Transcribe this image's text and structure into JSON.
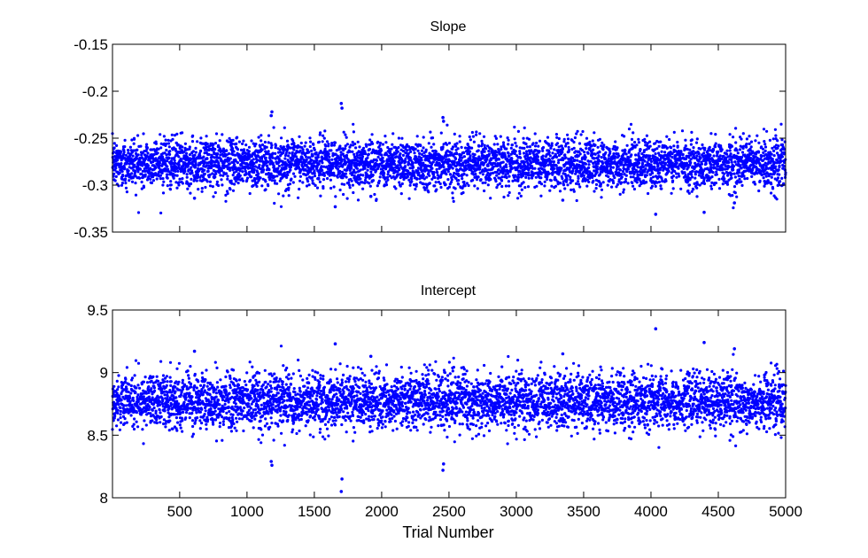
{
  "chart_data": [
    {
      "type": "scatter",
      "title": "Slope",
      "xlabel": "",
      "ylabel": "",
      "xlim": [
        1,
        5000
      ],
      "ylim": [
        -0.35,
        -0.15
      ],
      "xticks": [
        500,
        1000,
        1500,
        2000,
        2500,
        3000,
        3500,
        4000,
        4500,
        5000
      ],
      "yticks": [
        -0.35,
        -0.3,
        -0.25,
        -0.2,
        -0.15
      ],
      "yticklabels": [
        "-0.35",
        "-0.3",
        "-0.25",
        "-0.2",
        "-0.15"
      ],
      "show_xticklabels": false,
      "grid": false,
      "marker": "point",
      "color": "#0000ff",
      "n_points": 5000,
      "mean": -0.277,
      "std": 0.013,
      "outliers": [
        [
          1185,
          -0.222
        ],
        [
          1180,
          -0.226
        ],
        [
          1700,
          -0.213
        ],
        [
          1705,
          -0.218
        ],
        [
          2455,
          -0.228
        ],
        [
          2460,
          -0.232
        ],
        [
          1655,
          -0.323
        ],
        [
          4035,
          -0.331
        ],
        [
          4395,
          -0.329
        ],
        [
          4620,
          -0.319
        ],
        [
          3345,
          -0.316
        ],
        [
          610,
          -0.314
        ],
        [
          1920,
          -0.312
        ]
      ]
    },
    {
      "type": "scatter",
      "title": "Intercept",
      "xlabel": "Trial Number",
      "ylabel": "",
      "xlim": [
        1,
        5000
      ],
      "ylim": [
        8,
        9.5
      ],
      "xticks": [
        500,
        1000,
        1500,
        2000,
        2500,
        3000,
        3500,
        4000,
        4500,
        5000
      ],
      "xticklabels": [
        "500",
        "1000",
        "1500",
        "2000",
        "2500",
        "3000",
        "3500",
        "4000",
        "4500",
        "5000"
      ],
      "yticks": [
        8,
        8.5,
        9,
        9.5
      ],
      "yticklabels": [
        "8",
        "8.5",
        "9",
        "9.5"
      ],
      "grid": false,
      "marker": "point",
      "color": "#0000ff",
      "n_points": 5000,
      "mean": 8.77,
      "std": 0.11,
      "outliers": [
        [
          1700,
          8.05
        ],
        [
          1705,
          8.15
        ],
        [
          1185,
          8.26
        ],
        [
          1180,
          8.29
        ],
        [
          2455,
          8.22
        ],
        [
          2460,
          8.27
        ],
        [
          1655,
          9.23
        ],
        [
          4035,
          9.35
        ],
        [
          4395,
          9.24
        ],
        [
          4620,
          9.19
        ],
        [
          3345,
          9.15
        ],
        [
          610,
          9.17
        ],
        [
          1920,
          9.13
        ]
      ]
    }
  ]
}
